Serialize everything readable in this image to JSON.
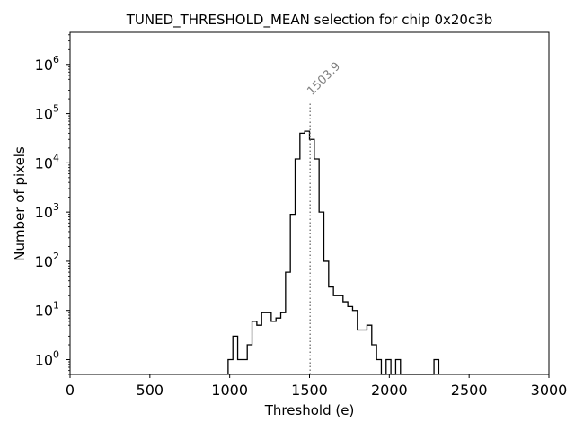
{
  "chart_data": {
    "type": "histogram",
    "title": "TUNED_THRESHOLD_MEAN selection for chip 0x20c3b",
    "xlabel": "Threshold (e)",
    "ylabel": "Number of pixels",
    "xlim": [
      0,
      3000
    ],
    "ylim": [
      0.5,
      4500000
    ],
    "yscale": "log",
    "xticks": [
      0,
      500,
      1000,
      1500,
      2000,
      2500,
      3000
    ],
    "xtick_labels": [
      "0",
      "500",
      "1000",
      "1500",
      "2000",
      "2500",
      "3000"
    ],
    "yticks": [
      1,
      10,
      100,
      1000,
      10000,
      100000,
      1000000
    ],
    "ytick_labels": [
      {
        "base": "10",
        "exp": "0"
      },
      {
        "base": "10",
        "exp": "1"
      },
      {
        "base": "10",
        "exp": "2"
      },
      {
        "base": "10",
        "exp": "3"
      },
      {
        "base": "10",
        "exp": "4"
      },
      {
        "base": "10",
        "exp": "5"
      },
      {
        "base": "10",
        "exp": "6"
      }
    ],
    "bin_width": 30,
    "bin_start": 990,
    "counts": [
      1,
      3,
      1,
      1,
      2,
      6,
      5,
      9,
      9,
      6,
      7,
      9,
      60,
      900,
      12000,
      40000,
      44000,
      30000,
      12000,
      1000,
      100,
      30,
      20,
      20,
      15,
      12,
      10,
      4,
      4,
      5,
      2,
      1,
      0,
      1,
      0,
      1,
      0,
      0,
      0,
      0,
      0,
      0,
      0,
      1
    ],
    "vline": {
      "x": 1503.9,
      "label": "1503.9",
      "y_top": 180000,
      "style": "dotted",
      "color": "#808080"
    },
    "line_color": "#000000"
  }
}
